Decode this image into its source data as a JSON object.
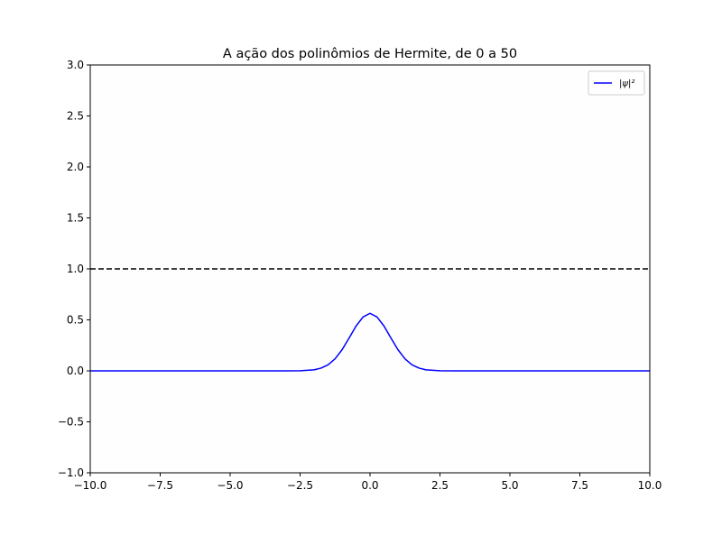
{
  "chart_data": {
    "type": "line",
    "title": "A ação dos polinômios de Hermite, de 0 a 50",
    "xlabel": "",
    "ylabel": "",
    "xlim": [
      -10,
      10
    ],
    "ylim": [
      -1,
      3
    ],
    "grid": false,
    "legend_placement": "top-right",
    "x_ticks": [
      -10,
      -7.5,
      -5,
      -2.5,
      0,
      2.5,
      5,
      7.5,
      10
    ],
    "x_tick_labels": [
      "−10.0",
      "−7.5",
      "−5.0",
      "−2.5",
      "0.0",
      "2.5",
      "5.0",
      "7.5",
      "10.0"
    ],
    "y_ticks": [
      -1,
      -0.5,
      0,
      0.5,
      1,
      1.5,
      2,
      2.5,
      3
    ],
    "y_tick_labels": [
      "−1.0",
      "−0.5",
      "0.0",
      "0.5",
      "1.0",
      "1.5",
      "2.0",
      "2.5",
      "3.0"
    ],
    "series": [
      {
        "name": "|ψ|²",
        "color": "#0000ff",
        "style": "solid",
        "x": [
          -10,
          -5,
          -3,
          -2.5,
          -2,
          -1.75,
          -1.5,
          -1.25,
          -1,
          -0.75,
          -0.5,
          -0.25,
          0,
          0.25,
          0.5,
          0.75,
          1,
          1.25,
          1.5,
          1.75,
          2,
          2.5,
          3,
          5,
          10
        ],
        "y": [
          0,
          0,
          0.0001,
          0.001,
          0.01,
          0.027,
          0.059,
          0.118,
          0.207,
          0.321,
          0.439,
          0.528,
          0.564,
          0.528,
          0.439,
          0.321,
          0.207,
          0.118,
          0.059,
          0.027,
          0.01,
          0.001,
          0.0001,
          0,
          0
        ]
      }
    ],
    "reference_lines": [
      {
        "y": 1.0,
        "color": "#000000",
        "style": "dashed"
      }
    ]
  }
}
